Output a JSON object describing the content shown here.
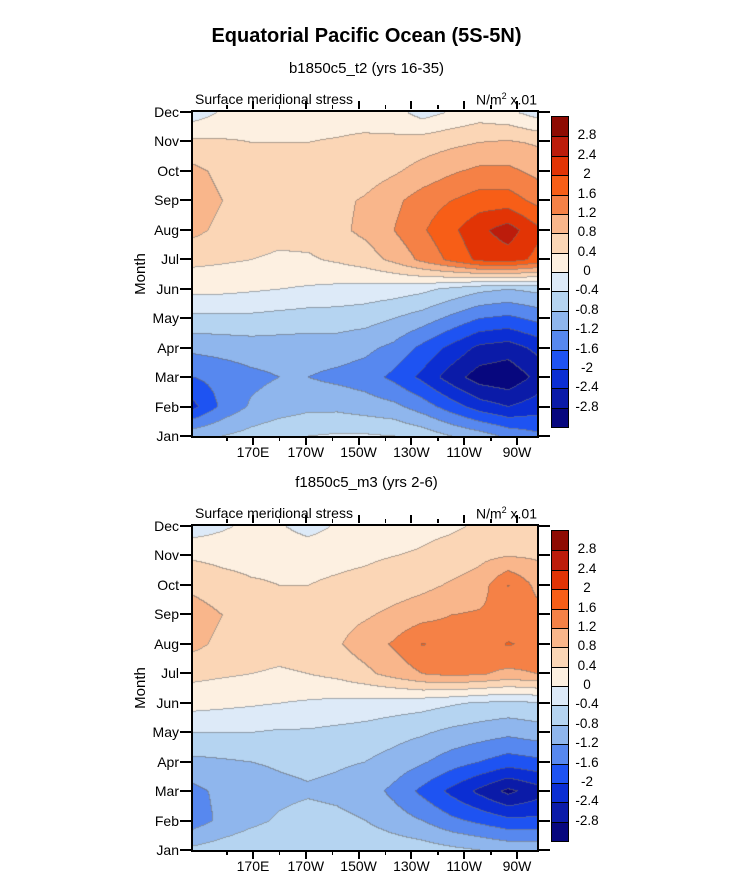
{
  "main_title": "Equatorial Pacific Ocean (5S-5N)",
  "months_top_to_bottom": [
    "Dec",
    "Nov",
    "Oct",
    "Sep",
    "Aug",
    "Jul",
    "Jun",
    "May",
    "Apr",
    "Mar",
    "Feb",
    "Jan"
  ],
  "x_tick_labels": [
    "170E",
    "170W",
    "150W",
    "130W",
    "110W",
    "90W"
  ],
  "colorbar": {
    "tick_labels_top_to_bottom": [
      "2.8",
      "2.4",
      "2",
      "1.6",
      "1.2",
      "0.8",
      "0.4",
      "0",
      "-0.4",
      "-0.8",
      "-1.2",
      "-1.6",
      "-2",
      "-2.4",
      "-2.8"
    ],
    "colors_low_to_high": [
      "#07077e",
      "#0b1ba8",
      "#0b2ed3",
      "#1e53f2",
      "#5788ef",
      "#8fb6ed",
      "#b5d4f1",
      "#ddeaf8",
      "#fdf0e1",
      "#fbd6b6",
      "#f9b68b",
      "#f58146",
      "#f75e17",
      "#e23405",
      "#bc1c0b",
      "#8e0b03"
    ],
    "contour_line_color": "#6e6e6e"
  },
  "panels": [
    {
      "title": "b1850c5_t2 (yrs 16-35)",
      "field_label": "Surface meridional stress",
      "units_prefix": "N/m",
      "units_sup": "2",
      "units_suffix": " x.01",
      "ylabel": "Month"
    },
    {
      "title": "f1850c5_m3 (yrs 2-6)",
      "field_label": "Surface meridional stress",
      "units_prefix": "N/m",
      "units_sup": "2",
      "units_suffix": " x.01",
      "ylabel": "Month"
    }
  ],
  "chart_data": [
    {
      "type": "heatmap",
      "title": "b1850c5_t2 (yrs 16-35)",
      "suptitle": "Equatorial Pacific Ocean (5S-5N)",
      "field": "Surface meridional stress",
      "units": "N/m^2 x.01",
      "ylabel": "Month",
      "x_axis": "longitude, 148E to 83W",
      "x_major_ticks": [
        "170E",
        "170W",
        "150W",
        "130W",
        "110W",
        "90W"
      ],
      "contour_levels": [
        -2.8,
        -2.4,
        -2.0,
        -1.6,
        -1.2,
        -0.8,
        -0.4,
        0.0,
        0.4,
        0.8,
        1.2,
        1.6,
        2.0,
        2.4,
        2.8
      ],
      "lon_columns_approx": [
        "148E",
        "159E",
        "169E",
        "180",
        "170W",
        "159W",
        "149W",
        "138W",
        "127W",
        "117W",
        "106W",
        "95W",
        "85W"
      ],
      "rows_months": [
        "Jan",
        "Feb",
        "Mar",
        "Apr",
        "May",
        "Jun",
        "Jul",
        "Aug",
        "Sep",
        "Oct",
        "Nov",
        "Dec"
      ],
      "values": [
        [
          -0.9,
          -0.8,
          -0.65,
          -0.5,
          -0.4,
          -0.35,
          -0.35,
          -0.4,
          -0.55,
          -0.8,
          -1.0,
          -1.3,
          -1.5
        ],
        [
          -2.1,
          -1.5,
          -1.15,
          -1.0,
          -0.9,
          -0.9,
          -1.0,
          -1.1,
          -1.4,
          -1.8,
          -2.2,
          -2.4,
          -2.2
        ],
        [
          -1.6,
          -1.45,
          -1.3,
          -1.2,
          -1.2,
          -1.3,
          -1.4,
          -1.7,
          -2.1,
          -2.6,
          -3.0,
          -3.1,
          -2.7
        ],
        [
          -1.1,
          -1.05,
          -1.0,
          -1.0,
          -1.0,
          -1.0,
          -1.1,
          -1.3,
          -1.7,
          -2.1,
          -2.5,
          -2.6,
          -2.3
        ],
        [
          -0.5,
          -0.5,
          -0.5,
          -0.55,
          -0.6,
          -0.6,
          -0.65,
          -0.8,
          -1.0,
          -1.3,
          -1.6,
          -1.7,
          -1.5
        ],
        [
          0.1,
          0.1,
          0.05,
          0.0,
          -0.05,
          -0.1,
          -0.15,
          -0.2,
          -0.3,
          -0.5,
          -0.7,
          -0.8,
          -0.7
        ],
        [
          0.5,
          0.45,
          0.4,
          0.35,
          0.35,
          0.45,
          0.6,
          0.9,
          1.3,
          1.7,
          2.1,
          2.2,
          1.9
        ],
        [
          0.9,
          0.7,
          0.55,
          0.5,
          0.55,
          0.7,
          0.9,
          1.2,
          1.55,
          1.9,
          2.3,
          2.6,
          2.1
        ],
        [
          1.0,
          0.8,
          0.6,
          0.55,
          0.6,
          0.7,
          0.85,
          1.1,
          1.4,
          1.6,
          1.8,
          1.8,
          1.5
        ],
        [
          0.9,
          0.7,
          0.5,
          0.45,
          0.45,
          0.5,
          0.6,
          0.75,
          0.95,
          1.15,
          1.3,
          1.3,
          1.1
        ],
        [
          0.5,
          0.45,
          0.4,
          0.4,
          0.4,
          0.42,
          0.45,
          0.5,
          0.6,
          0.7,
          0.8,
          0.85,
          0.75
        ],
        [
          -0.2,
          0.05,
          0.2,
          0.28,
          0.3,
          0.3,
          0.3,
          0.15,
          -0.15,
          0.05,
          0.2,
          0.1,
          -0.15
        ]
      ]
    },
    {
      "type": "heatmap",
      "title": "f1850c5_m3 (yrs 2-6)",
      "suptitle": "Equatorial Pacific Ocean (5S-5N)",
      "field": "Surface meridional stress",
      "units": "N/m^2 x.01",
      "ylabel": "Month",
      "x_axis": "longitude, 148E to 83W",
      "x_major_ticks": [
        "170E",
        "170W",
        "150W",
        "130W",
        "110W",
        "90W"
      ],
      "contour_levels": [
        -2.8,
        -2.4,
        -2.0,
        -1.6,
        -1.2,
        -0.8,
        -0.4,
        0.0,
        0.4,
        0.8,
        1.2,
        1.6,
        2.0,
        2.4,
        2.8
      ],
      "lon_columns_approx": [
        "148E",
        "159E",
        "169E",
        "180",
        "170W",
        "159W",
        "149W",
        "138W",
        "127W",
        "117W",
        "106W",
        "95W",
        "85W"
      ],
      "rows_months": [
        "Jan",
        "Feb",
        "Mar",
        "Apr",
        "May",
        "Jun",
        "Jul",
        "Aug",
        "Sep",
        "Oct",
        "Nov",
        "Dec"
      ],
      "values": [
        [
          -0.7,
          -0.6,
          -0.5,
          -0.45,
          -0.42,
          -0.45,
          -0.5,
          -0.55,
          -0.6,
          -0.7,
          -0.8,
          -0.9,
          -0.9
        ],
        [
          -1.4,
          -1.1,
          -0.9,
          -0.75,
          -0.65,
          -0.7,
          -0.8,
          -1.0,
          -1.2,
          -1.5,
          -1.7,
          -1.9,
          -1.9
        ],
        [
          -1.3,
          -1.1,
          -1.0,
          -0.9,
          -0.85,
          -0.9,
          -1.0,
          -1.3,
          -1.7,
          -2.1,
          -2.5,
          -2.9,
          -2.6
        ],
        [
          -0.9,
          -0.85,
          -0.8,
          -0.75,
          -0.7,
          -0.75,
          -0.8,
          -0.95,
          -1.15,
          -1.4,
          -1.6,
          -1.8,
          -1.7
        ],
        [
          -0.4,
          -0.4,
          -0.4,
          -0.45,
          -0.45,
          -0.5,
          -0.55,
          -0.65,
          -0.75,
          -0.9,
          -1.0,
          -1.1,
          -1.0
        ],
        [
          0.15,
          0.1,
          0.05,
          0.0,
          -0.05,
          -0.1,
          -0.15,
          -0.2,
          -0.25,
          -0.35,
          -0.45,
          -0.5,
          -0.45
        ],
        [
          0.5,
          0.45,
          0.4,
          0.35,
          0.4,
          0.5,
          0.7,
          0.95,
          1.2,
          1.3,
          1.25,
          1.1,
          1.2
        ],
        [
          0.9,
          0.7,
          0.6,
          0.55,
          0.6,
          0.75,
          1.0,
          1.25,
          1.62,
          1.5,
          1.4,
          1.63,
          1.5
        ],
        [
          1.0,
          0.8,
          0.65,
          0.6,
          0.6,
          0.65,
          0.75,
          0.9,
          1.05,
          1.2,
          1.25,
          1.3,
          1.35
        ],
        [
          0.7,
          0.55,
          0.45,
          0.4,
          0.4,
          0.45,
          0.5,
          0.6,
          0.7,
          0.85,
          1.0,
          1.62,
          1.1
        ],
        [
          0.35,
          0.3,
          0.28,
          0.3,
          0.3,
          0.32,
          0.35,
          0.4,
          0.45,
          0.55,
          0.7,
          0.8,
          0.75
        ],
        [
          -0.2,
          -0.05,
          0.1,
          0.05,
          -0.15,
          0.05,
          0.15,
          0.2,
          0.3,
          0.35,
          0.45,
          0.5,
          0.45
        ]
      ]
    }
  ]
}
